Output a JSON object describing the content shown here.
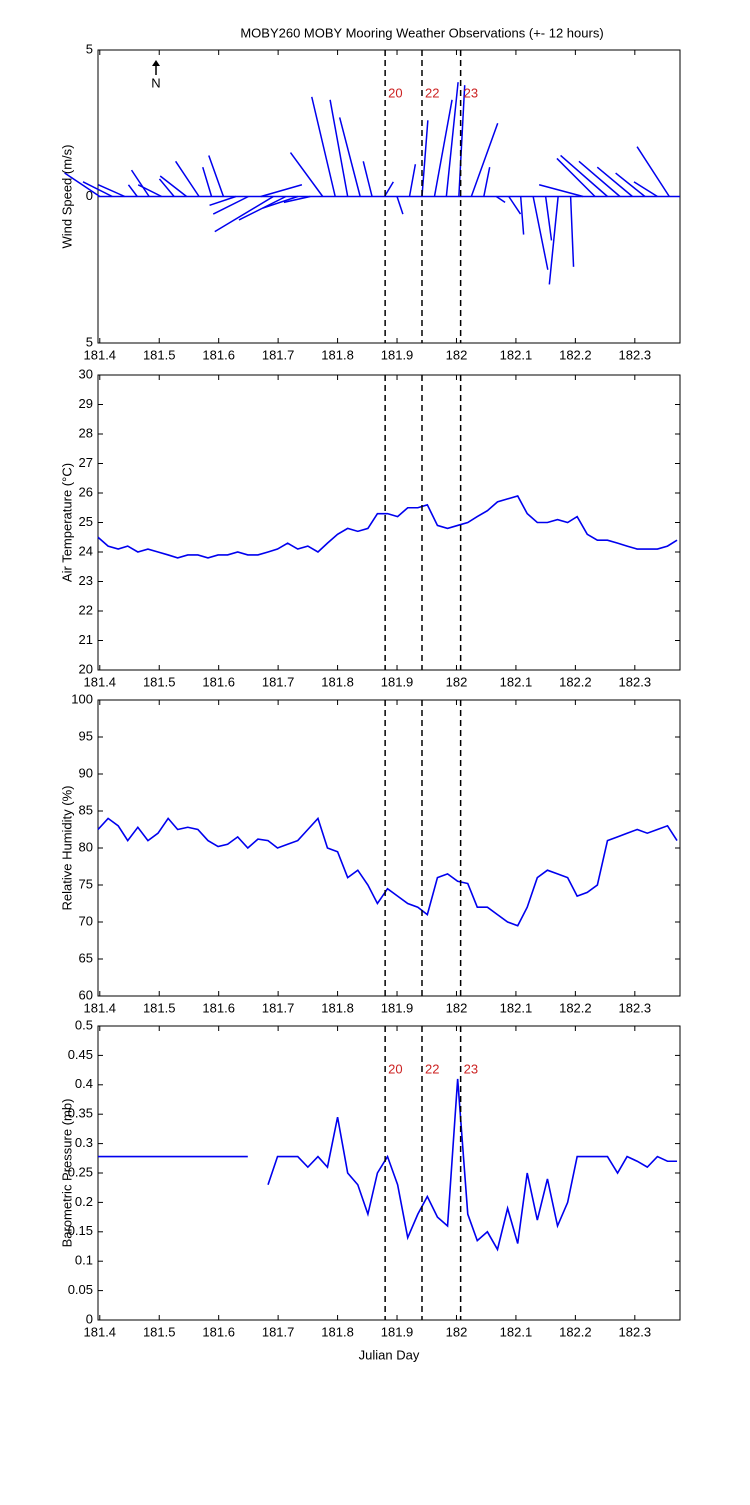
{
  "chart_data": [
    {
      "type": "stick",
      "title": "MOBY260 MOBY Mooring Weather Observations (+- 12 hours)",
      "ylabel": "Wind Speed (m/s)",
      "north_label": "N",
      "color": "#0000ee",
      "xlim": [
        181.397,
        182.376
      ],
      "xticks": [
        181.4,
        181.5,
        181.6,
        181.7,
        181.8,
        181.9,
        182,
        182.1,
        182.2,
        182.3
      ],
      "ylim": [
        -5,
        5
      ],
      "yticks": [
        {
          "value": -5,
          "label": "5"
        },
        0,
        5
      ],
      "vlines": [
        181.88,
        181.942,
        182.007
      ],
      "vline_labels": [
        "20",
        "22",
        "23"
      ],
      "x": [
        181.4,
        181.421,
        181.442,
        181.463,
        181.483,
        181.504,
        181.525,
        181.546,
        181.567,
        181.588,
        181.608,
        181.629,
        181.65,
        181.671,
        181.692,
        181.713,
        181.733,
        181.754,
        181.775,
        181.796,
        181.817,
        181.838,
        181.858,
        181.879,
        181.9,
        181.921,
        181.942,
        181.963,
        181.983,
        182.004,
        182.025,
        182.046,
        182.067,
        182.088,
        182.108,
        182.129,
        182.15,
        182.171,
        182.192,
        182.213,
        182.233,
        182.254,
        182.275,
        182.296,
        182.317,
        182.338,
        182.358
      ],
      "u": [
        -1.2,
        -1,
        -0.9,
        -0.3,
        -0.6,
        -0.8,
        -0.5,
        -0.9,
        -0.8,
        -0.3,
        -0.5,
        -0.9,
        -1.2,
        1.4,
        -2,
        -1.6,
        -1.2,
        -0.9,
        -1.1,
        -0.8,
        -0.6,
        -0.7,
        -0.3,
        0.3,
        0.2,
        0.2,
        0.2,
        0.6,
        0.4,
        0.2,
        0.9,
        0.2,
        0.3,
        0.4,
        0.1,
        0.5,
        0.2,
        -0.3,
        0.1,
        -1.5,
        -1.3,
        -1.6,
        -1.4,
        -1.2,
        -1,
        -0.8,
        -1.1
      ],
      "v": [
        0.8,
        0.5,
        0.4,
        0.4,
        0.9,
        0.4,
        0.6,
        0.7,
        1.2,
        1,
        1.4,
        -0.3,
        -0.6,
        0.4,
        -1.2,
        -0.8,
        -0.4,
        -0.2,
        1.5,
        3.4,
        3.3,
        2.7,
        1.2,
        0.5,
        -0.6,
        1.1,
        2.6,
        3.3,
        3.9,
        3.8,
        2.5,
        1,
        -0.2,
        -0.6,
        -1.3,
        -2.5,
        -1.5,
        -3,
        -2.4,
        0.4,
        1.3,
        1.4,
        1.2,
        1,
        0.8,
        0.5,
        1.7
      ]
    },
    {
      "type": "line",
      "ylabel": "Air Temperature (°C)",
      "color": "#0000ee",
      "xlim": [
        181.397,
        182.376
      ],
      "xticks": [
        181.4,
        181.5,
        181.6,
        181.7,
        181.8,
        181.9,
        182,
        182.1,
        182.2,
        182.3
      ],
      "ylim": [
        20,
        30
      ],
      "yticks": [
        20,
        21,
        22,
        23,
        24,
        25,
        26,
        27,
        28,
        29,
        30
      ],
      "vlines": [
        181.88,
        181.942,
        182.007
      ],
      "x": [
        181.397,
        181.414,
        181.431,
        181.447,
        181.464,
        181.481,
        181.498,
        181.515,
        181.531,
        181.548,
        181.565,
        181.582,
        181.599,
        181.615,
        181.632,
        181.649,
        181.666,
        181.683,
        181.699,
        181.716,
        181.733,
        181.75,
        181.767,
        181.783,
        181.8,
        181.817,
        181.834,
        181.851,
        181.867,
        181.884,
        181.901,
        181.918,
        181.935,
        181.951,
        181.968,
        181.985,
        182.002,
        182.019,
        182.035,
        182.052,
        182.069,
        182.086,
        182.103,
        182.119,
        182.136,
        182.153,
        182.17,
        182.187,
        182.203,
        182.22,
        182.237,
        182.254,
        182.271,
        182.287,
        182.304,
        182.321,
        182.338,
        182.355,
        182.371
      ],
      "values": [
        24.5,
        24.2,
        24.1,
        24.2,
        24.0,
        24.1,
        24.0,
        23.9,
        23.8,
        23.9,
        23.9,
        23.8,
        23.9,
        23.9,
        24.0,
        23.9,
        23.9,
        24.0,
        24.1,
        24.3,
        24.1,
        24.2,
        24.0,
        24.3,
        24.6,
        24.8,
        24.7,
        24.8,
        25.3,
        25.3,
        25.2,
        25.5,
        25.5,
        25.6,
        24.9,
        24.8,
        24.9,
        25.0,
        25.2,
        25.4,
        25.7,
        25.8,
        25.9,
        25.3,
        25.0,
        25.0,
        25.1,
        25.0,
        25.2,
        24.6,
        24.4,
        24.4,
        24.3,
        24.2,
        24.1,
        24.1,
        24.1,
        24.2,
        24.4
      ]
    },
    {
      "type": "line",
      "ylabel": "Relative Humidity (%)",
      "color": "#0000ee",
      "xlim": [
        181.397,
        182.376
      ],
      "xticks": [
        181.4,
        181.5,
        181.6,
        181.7,
        181.8,
        181.9,
        182,
        182.1,
        182.2,
        182.3
      ],
      "ylim": [
        60,
        100
      ],
      "yticks": [
        60,
        65,
        70,
        75,
        80,
        85,
        90,
        95,
        100
      ],
      "vlines": [
        181.88,
        181.942,
        182.007
      ],
      "x": [
        181.397,
        181.414,
        181.431,
        181.447,
        181.464,
        181.481,
        181.498,
        181.515,
        181.531,
        181.548,
        181.565,
        181.582,
        181.599,
        181.615,
        181.632,
        181.649,
        181.666,
        181.683,
        181.699,
        181.716,
        181.733,
        181.75,
        181.767,
        181.783,
        181.8,
        181.817,
        181.834,
        181.851,
        181.867,
        181.884,
        181.901,
        181.918,
        181.935,
        181.951,
        181.968,
        181.985,
        182.002,
        182.019,
        182.035,
        182.052,
        182.069,
        182.086,
        182.103,
        182.119,
        182.136,
        182.153,
        182.17,
        182.187,
        182.203,
        182.22,
        182.237,
        182.254,
        182.271,
        182.287,
        182.304,
        182.321,
        182.338,
        182.355,
        182.371
      ],
      "values": [
        82.5,
        84,
        83,
        81,
        82.8,
        81,
        82,
        84,
        82.5,
        82.8,
        82.5,
        81,
        80.2,
        80.5,
        81.5,
        80,
        81.2,
        81,
        80,
        80.5,
        81,
        82.5,
        84,
        80,
        79.5,
        76,
        77,
        75,
        72.5,
        74.5,
        73.5,
        72.5,
        72,
        71,
        76,
        76.5,
        75.5,
        75.2,
        72,
        72,
        71,
        70,
        69.5,
        72,
        76,
        77,
        76.5,
        76,
        73.5,
        74,
        75,
        81,
        81.5,
        82,
        82.5,
        82,
        82.5,
        83,
        81
      ]
    },
    {
      "type": "line",
      "ylabel": "Barometric Pressure (mb)",
      "xlabel": "Julian Day",
      "color": "#0000ee",
      "xlim": [
        181.397,
        182.376
      ],
      "xticks": [
        181.4,
        181.5,
        181.6,
        181.7,
        181.8,
        181.9,
        182,
        182.1,
        182.2,
        182.3
      ],
      "ylim": [
        0,
        0.5
      ],
      "yticks": [
        0,
        0.05,
        0.1,
        0.15,
        0.2,
        0.25,
        0.3,
        0.35,
        0.4,
        0.45,
        0.5
      ],
      "vlines": [
        181.88,
        181.942,
        182.007
      ],
      "vline_labels": [
        "20",
        "22",
        "23"
      ],
      "x": [
        181.397,
        181.414,
        181.431,
        181.447,
        181.464,
        181.481,
        181.498,
        181.515,
        181.531,
        181.548,
        181.565,
        181.582,
        181.599,
        181.615,
        181.632,
        181.649,
        181.666,
        181.683,
        181.699,
        181.716,
        181.733,
        181.75,
        181.767,
        181.783,
        181.8,
        181.817,
        181.834,
        181.851,
        181.867,
        181.884,
        181.901,
        181.918,
        181.935,
        181.951,
        181.968,
        181.985,
        182.002,
        182.019,
        182.035,
        182.052,
        182.069,
        182.086,
        182.103,
        182.119,
        182.136,
        182.153,
        182.17,
        182.187,
        182.203,
        182.22,
        182.237,
        182.254,
        182.271,
        182.287,
        182.304,
        182.321,
        182.338,
        182.355,
        182.371
      ],
      "values": [
        0.278,
        0.278,
        0.278,
        0.278,
        0.278,
        0.278,
        0.278,
        0.278,
        0.278,
        0.278,
        0.278,
        0.278,
        0.278,
        0.278,
        0.278,
        0.278,
        null,
        0.23,
        0.278,
        0.278,
        0.278,
        0.26,
        0.278,
        0.26,
        0.345,
        0.25,
        0.23,
        0.18,
        0.25,
        0.278,
        0.23,
        0.14,
        0.18,
        0.21,
        0.175,
        0.16,
        0.41,
        0.18,
        0.135,
        0.15,
        0.12,
        0.19,
        0.13,
        0.25,
        0.17,
        0.24,
        0.16,
        0.2,
        0.278,
        0.278,
        0.278,
        0.278,
        0.25,
        0.278,
        0.27,
        0.26,
        0.278,
        0.27,
        0.27
      ]
    }
  ]
}
